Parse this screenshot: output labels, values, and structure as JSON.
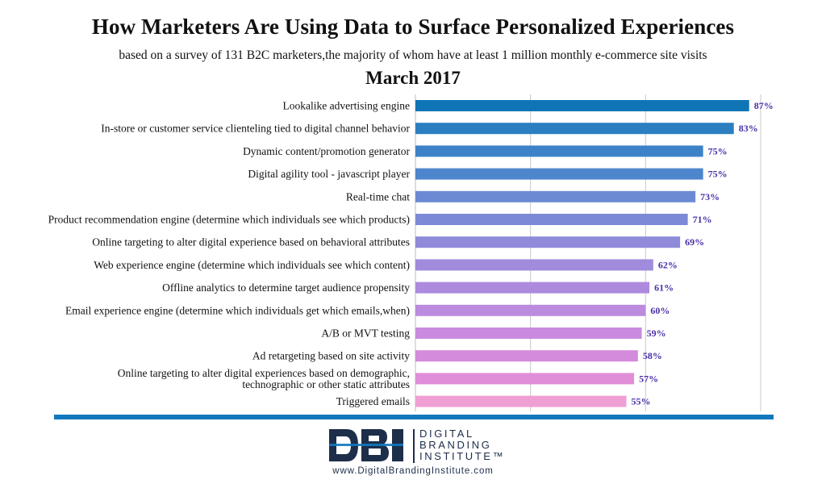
{
  "title": "How Marketers Are Using Data to Surface Personalized Experiences",
  "subtitle": "based on a survey of 131 B2C marketers,the majority of whom have at least 1 million monthly e-commerce site visits",
  "date": "March 2017",
  "chart_data": {
    "type": "bar",
    "orientation": "horizontal",
    "categories": [
      "Lookalike advertising engine",
      "In-store or customer service clienteling tied to digital channel behavior",
      "Dynamic content/promotion generator",
      "Digital agility tool - javascript player",
      "Real-time chat",
      "Product recommendation engine (determine which individuals see which products)",
      "Online targeting to alter digital experience based on behavioral attributes",
      "Web experience engine (determine which individuals see which content)",
      "Offline analytics to determine target audience propensity",
      "Email experience engine (determine which individuals get which emails,when)",
      "A/B or MVT testing",
      "Ad retargeting based on site activity",
      "Online targeting to alter digital experiences based on demographic, technographic or other static attributes",
      "Triggered emails"
    ],
    "category_lines": [
      [
        "Lookalike advertising engine"
      ],
      [
        "In-store or customer service clienteling tied to digital channel behavior"
      ],
      [
        "Dynamic content/promotion generator"
      ],
      [
        "Digital agility tool - javascript player"
      ],
      [
        "Real-time chat"
      ],
      [
        "Product recommendation engine (determine which individuals see which products)"
      ],
      [
        "Online targeting to alter digital experience based on behavioral attributes"
      ],
      [
        "Web experience engine (determine which individuals see which content)"
      ],
      [
        "Offline analytics to determine target audience propensity"
      ],
      [
        "Email experience engine (determine which individuals get which emails,when)"
      ],
      [
        "A/B or MVT testing"
      ],
      [
        "Ad retargeting based on site activity"
      ],
      [
        "Online targeting to alter digital experiences based on demographic,",
        "technographic or other static attributes"
      ],
      [
        "Triggered emails"
      ]
    ],
    "values": [
      87,
      83,
      75,
      75,
      73,
      71,
      69,
      62,
      61,
      60,
      59,
      58,
      57,
      55
    ],
    "value_labels": [
      "87%",
      "83%",
      "75%",
      "75%",
      "73%",
      "71%",
      "69%",
      "62%",
      "61%",
      "60%",
      "59%",
      "58%",
      "57%",
      "55%"
    ],
    "colors": [
      "#0f75b6",
      "#2b7fc1",
      "#3d82c8",
      "#4d86cc",
      "#6b8ad3",
      "#7c8ad6",
      "#8f8ada",
      "#a08bdc",
      "#ad8ade",
      "#bc8bdf",
      "#c98bde",
      "#d48bdb",
      "#e18ed8",
      "#f09fd5"
    ],
    "xlim": [
      0,
      90
    ],
    "grid": true,
    "xlabel": "",
    "ylabel": ""
  },
  "logo": {
    "mark": "DBI",
    "line1": "DIGITAL",
    "line2": "BRANDING",
    "line3": "INSTITUTE™",
    "color": "#1d2e4a",
    "accent": "#1278bd"
  },
  "website": "www.DigitalBrandingInstitute.com"
}
